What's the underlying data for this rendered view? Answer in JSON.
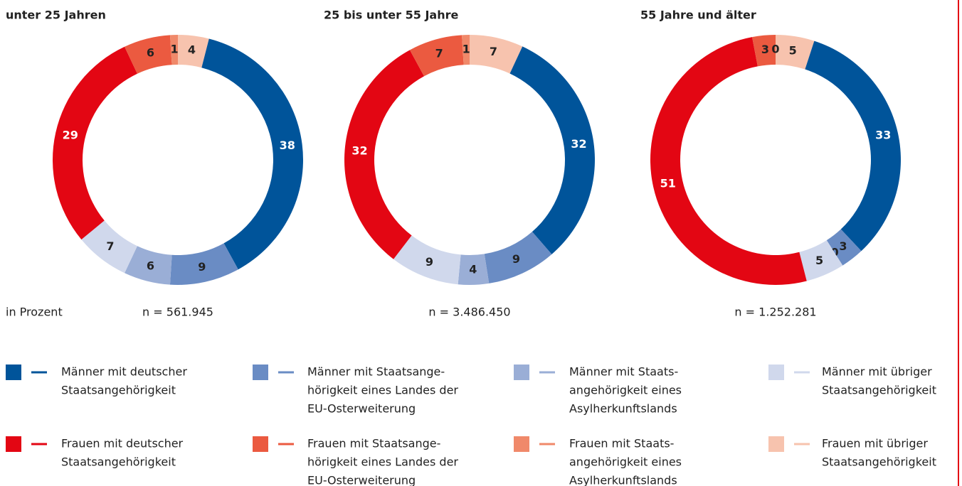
{
  "chart_data": [
    {
      "type": "donut",
      "title": "unter 25 Jahren",
      "note": "n = 561.945",
      "values": [
        38,
        9,
        6,
        7,
        29,
        6,
        1,
        4
      ]
    },
    {
      "type": "donut",
      "title": "25 bis unter 55 Jahre",
      "note": "n = 3.486.450",
      "values": [
        32,
        9,
        4,
        9,
        32,
        7,
        1,
        7
      ]
    },
    {
      "type": "donut",
      "title": "55 Jahre und älter",
      "note": "n = 1.252.281",
      "values": [
        33,
        3,
        0,
        5,
        51,
        3,
        0,
        5
      ]
    }
  ],
  "unit_note": "in Prozent",
  "legend": [
    {
      "lines": [
        "Männer mit deutscher",
        "Staatsangehörigkeit"
      ],
      "color": "#00549a"
    },
    {
      "lines": [
        "Männer mit Staatsange-",
        "hörigkeit eines Landes der",
        "EU-Osterweiterung"
      ],
      "color": "#6a8cc4"
    },
    {
      "lines": [
        "Männer mit Staats-",
        "angehörigkeit eines",
        "Asylherkunftslands"
      ],
      "color": "#9aaed6"
    },
    {
      "lines": [
        "Männer mit übriger",
        "Staatsangehörigkeit"
      ],
      "color": "#d0d8ec"
    },
    {
      "lines": [
        "Frauen mit deutscher",
        "Staatsangehörigkeit"
      ],
      "color": "#e30613"
    },
    {
      "lines": [
        "Frauen mit Staatsange-",
        "hörigkeit eines Landes der",
        "EU-Osterweiterung"
      ],
      "color": "#eb5a40"
    },
    {
      "lines": [
        "Frauen mit Staats-",
        "angehörigkeit eines",
        "Asylherkunftslands"
      ],
      "color": "#f0896a"
    },
    {
      "lines": [
        "Frauen mit übriger",
        "Staatsangehörigkeit"
      ],
      "color": "#f7c3ae"
    }
  ]
}
